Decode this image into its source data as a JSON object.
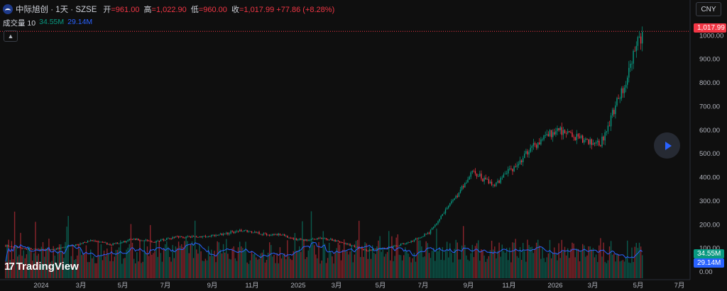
{
  "header": {
    "symbol": "中际旭创 · 1天 · SZSE",
    "open_label": "开",
    "open": "=961.00",
    "high_label": "高",
    "high": "=1,022.90",
    "low_label": "低",
    "low": "=960.00",
    "close_label": "收",
    "close": "=1,017.99",
    "change": "+77.86 (+8.28%)"
  },
  "volume_legend": {
    "label": "成交量 10",
    "v1": "34.55M",
    "v2": "29.14M"
  },
  "currency": "CNY",
  "collapse_icon": "chevron-up-icon",
  "logo_text": "TradingView",
  "last_price": "1,017.99",
  "vol_tags": [
    "34.55M",
    "29.14M"
  ],
  "colors": {
    "up": "#089981",
    "down": "#f23645",
    "ma": "#2962ff",
    "bg": "#0f0f0f"
  },
  "chart_data": {
    "type": "candlestick",
    "price_axis": [
      "1000.00",
      "900.00",
      "800.00",
      "700.00",
      "600.00",
      "500.00",
      "400.00",
      "300.00",
      "200.00",
      "100.00",
      "0.00"
    ],
    "time_axis": [
      "2024",
      "3月",
      "5月",
      "7月",
      "9月",
      "11月",
      "2025",
      "3月",
      "5月",
      "7月",
      "9月",
      "11月",
      "2026",
      "3月",
      "5月",
      "7月"
    ],
    "ylim": [
      0,
      1100
    ],
    "price_path": [
      [
        "2023-11",
        112
      ],
      [
        "2023-12",
        98
      ],
      [
        "2024-01",
        92
      ],
      [
        "2024-02",
        108
      ],
      [
        "2024-03",
        132
      ],
      [
        "2024-04",
        116
      ],
      [
        "2024-05",
        138
      ],
      [
        "2024-06",
        128
      ],
      [
        "2024-07",
        145
      ],
      [
        "2024-08",
        150
      ],
      [
        "2024-09",
        155
      ],
      [
        "2024-10",
        175
      ],
      [
        "2024-11",
        162
      ],
      [
        "2024-12",
        156
      ],
      [
        "2025-01",
        132
      ],
      [
        "2025-02",
        142
      ],
      [
        "2025-03",
        120
      ],
      [
        "2025-04",
        90
      ],
      [
        "2025-05",
        102
      ],
      [
        "2025-06",
        125
      ],
      [
        "2025-07",
        170
      ],
      [
        "2025-08",
        290
      ],
      [
        "2025-09",
        420
      ],
      [
        "2025-10",
        370
      ],
      [
        "2025-11",
        450
      ],
      [
        "2025-12",
        540
      ],
      [
        "2026-01",
        610
      ],
      [
        "2026-02",
        560
      ],
      [
        "2026-03",
        540
      ],
      [
        "2026-04",
        760
      ],
      [
        "2026-05",
        1017.99
      ]
    ]
  }
}
